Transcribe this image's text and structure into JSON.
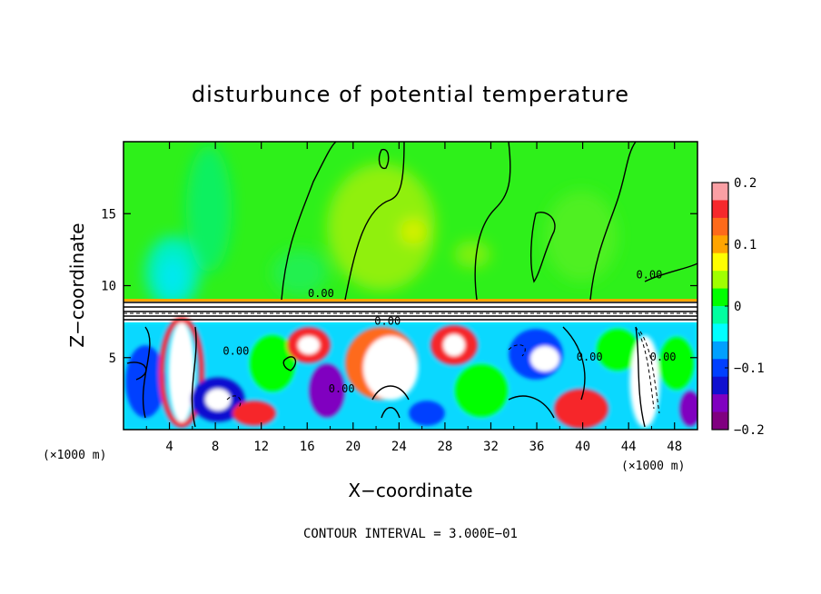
{
  "chart_data": {
    "type": "heatmap",
    "title": "disturbunce of potential temperature",
    "xlabel": "X−coordinate",
    "ylabel": "Z−coordinate",
    "x_unit": "(×1000 m)",
    "z_unit": "(×1000 m)",
    "xlim": [
      0,
      50
    ],
    "ylim": [
      0,
      20
    ],
    "x_ticks": [
      4,
      8,
      12,
      16,
      20,
      24,
      28,
      32,
      36,
      40,
      44,
      48
    ],
    "x_tick_labels": [
      "4",
      "8",
      "12",
      "16",
      "20",
      "24",
      "28",
      "32",
      "36",
      "40",
      "44",
      "48"
    ],
    "y_ticks": [
      5,
      10,
      15
    ],
    "y_tick_labels": [
      "5",
      "10",
      "15"
    ],
    "colorbar": {
      "range": [
        -0.2,
        0.2
      ],
      "ticks": [
        0.2,
        0.1,
        0,
        -0.1,
        -0.2
      ],
      "tick_labels": [
        "0.2",
        "0.1",
        "0",
        "−0.1",
        "−0.2"
      ],
      "colors": [
        "#fa9fa4",
        "#f6282c",
        "#fe6a1a",
        "#ffa400",
        "#fffe00",
        "#a0ff00",
        "#00ff00",
        "#00ffa0",
        "#00ffff",
        "#00a0ff",
        "#0040ff",
        "#1010d0",
        "#8000c0",
        "#800080"
      ]
    },
    "contour_interval_text": "CONTOUR INTERVAL = 3.000E−01",
    "contour_labels": [
      {
        "text": "0.00",
        "x": 17.2,
        "z": 9.2
      },
      {
        "text": "0.00",
        "x": 45.8,
        "z": 10.5
      },
      {
        "text": "0.00",
        "x": 23.0,
        "z": 7.3
      },
      {
        "text": "0.00",
        "x": 9.8,
        "z": 5.2
      },
      {
        "text": "0.00",
        "x": 19.0,
        "z": 2.6
      },
      {
        "text": "0.00",
        "x": 40.6,
        "z": 4.8
      },
      {
        "text": "0.00",
        "x": 47.0,
        "z": 4.8
      }
    ],
    "regions": {
      "upper_layer_z": [
        9,
        20
      ],
      "inversion_layer_z": [
        7.5,
        9
      ],
      "lower_layer_z": [
        0,
        7.5
      ]
    }
  }
}
